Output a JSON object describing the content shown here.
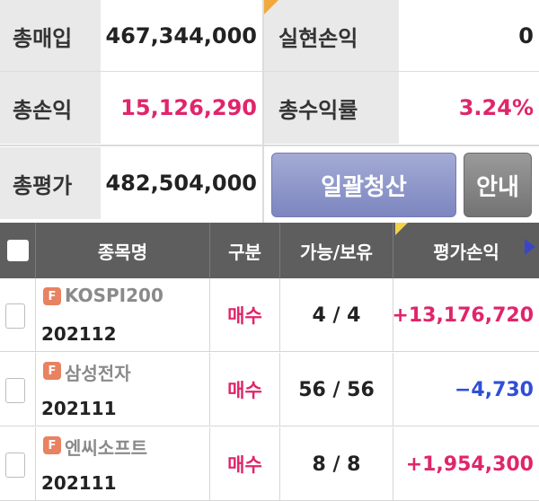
{
  "summary": {
    "rows": [
      {
        "label1": "총매입",
        "value1": "467,344,000",
        "label2": "실현손익",
        "value2": "0"
      },
      {
        "label1": "총손익",
        "value1": "15,126,290",
        "label2": "총수익률",
        "value2": "3.24%"
      },
      {
        "label1": "총평가",
        "value1": "482,504,000"
      }
    ],
    "liquidate_label": "일괄청산",
    "guide_label": "안내"
  },
  "table": {
    "headers": [
      "종목명",
      "구분",
      "가능/보유",
      "평가손익"
    ],
    "rows": [
      {
        "badge": "F",
        "name": "KOSPI200",
        "code": "202112",
        "type": "매수",
        "qty": "4 / 4",
        "pnl": "+13,176,720"
      },
      {
        "badge": "F",
        "name": "삼성전자",
        "code": "202111",
        "type": "매수",
        "qty": "56 / 56",
        "pnl": "−4,730"
      },
      {
        "badge": "F",
        "name": "엔씨소프트",
        "code": "202111",
        "type": "매수",
        "qty": "8 / 8",
        "pnl": "+1,954,300"
      }
    ]
  },
  "colors": {
    "positive": "#e0256a",
    "negative": "#2f4fd6",
    "accent_button": "#8a92c8"
  }
}
